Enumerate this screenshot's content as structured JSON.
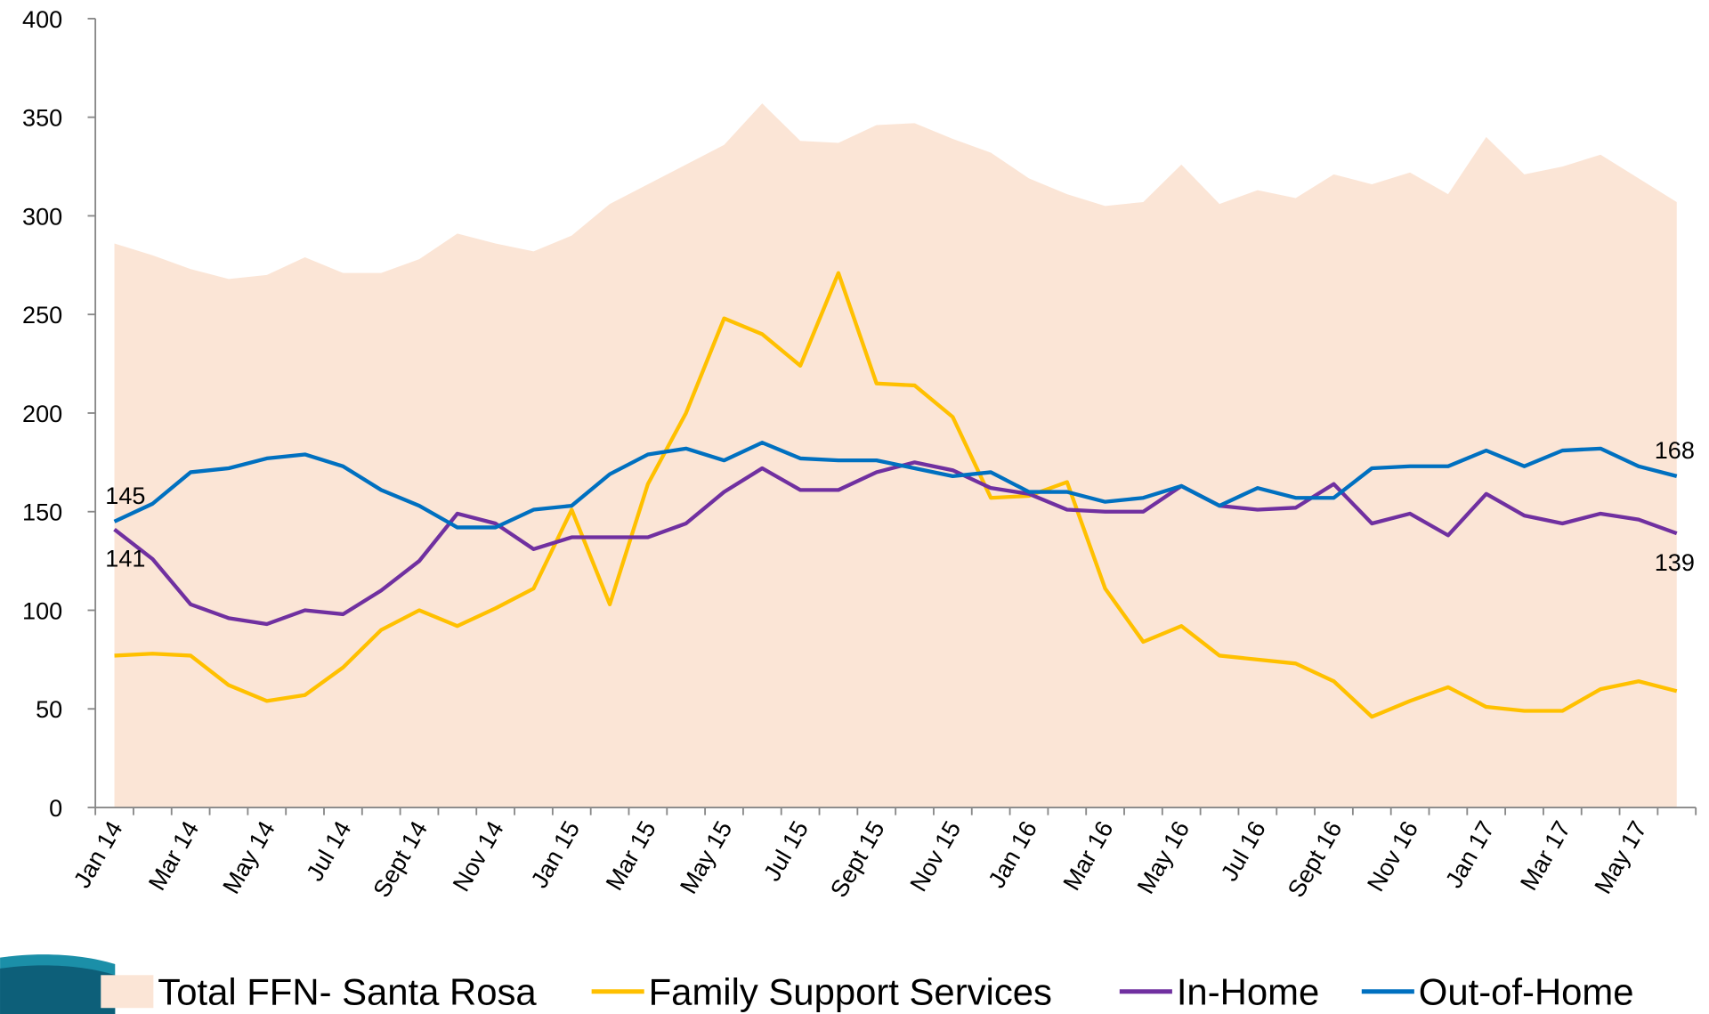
{
  "chart_data": {
    "type": "line",
    "categories": [
      "Jan 14",
      null,
      "Mar 14",
      null,
      "May 14",
      null,
      "Jul 14",
      null,
      "Sept 14",
      null,
      "Nov 14",
      null,
      "Jan 15",
      null,
      "Mar 15",
      null,
      "May 15",
      null,
      "Jul 15",
      null,
      "Sept 15",
      null,
      "Nov 15",
      null,
      "Jan 16",
      null,
      "Mar 16",
      null,
      "May 16",
      null,
      "Jul 16",
      null,
      "Sept 16",
      null,
      "Nov 16",
      null,
      "Jan 17",
      null,
      "Mar 17",
      null,
      "May 17",
      null
    ],
    "series": [
      {
        "name": "Total FFN- Santa Rosa",
        "type": "area",
        "color": "#fbe5d6",
        "values": [
          286,
          280,
          273,
          268,
          270,
          279,
          271,
          271,
          278,
          291,
          286,
          282,
          290,
          306,
          316,
          326,
          336,
          357,
          338,
          337,
          346,
          347,
          339,
          332,
          319,
          311,
          305,
          307,
          326,
          306,
          313,
          309,
          321,
          316,
          322,
          311,
          340,
          321,
          325,
          331,
          319,
          307
        ]
      },
      {
        "name": "Family Support Services",
        "color": "#ffc000",
        "values": [
          77,
          78,
          77,
          62,
          54,
          57,
          71,
          90,
          100,
          92,
          101,
          111,
          151,
          103,
          164,
          200,
          248,
          240,
          224,
          271,
          215,
          214,
          198,
          157,
          158,
          165,
          111,
          84,
          92,
          77,
          75,
          73,
          64,
          46,
          54,
          61,
          51,
          49,
          49,
          60,
          64,
          59
        ]
      },
      {
        "name": "In-Home",
        "color": "#7030a0",
        "data_labels": "below",
        "values": [
          141,
          126,
          103,
          96,
          93,
          100,
          98,
          110,
          125,
          149,
          144,
          131,
          137,
          137,
          137,
          144,
          160,
          172,
          161,
          161,
          170,
          175,
          171,
          162,
          159,
          151,
          150,
          150,
          163,
          153,
          151,
          152,
          164,
          144,
          149,
          138,
          159,
          148,
          144,
          149,
          146,
          139
        ]
      },
      {
        "name": "Out-of-Home",
        "color": "#0070c0",
        "data_labels": "above",
        "values": [
          145,
          154,
          170,
          172,
          177,
          179,
          173,
          161,
          153,
          142,
          142,
          151,
          153,
          169,
          179,
          182,
          176,
          185,
          177,
          176,
          176,
          172,
          168,
          170,
          160,
          160,
          155,
          157,
          163,
          153,
          162,
          157,
          157,
          172,
          173,
          173,
          181,
          173,
          181,
          182,
          173,
          168
        ]
      }
    ],
    "ylim": [
      0,
      400
    ],
    "yticks": [
      0,
      50,
      100,
      150,
      200,
      250,
      300,
      350,
      400
    ],
    "legend": "bottom"
  }
}
